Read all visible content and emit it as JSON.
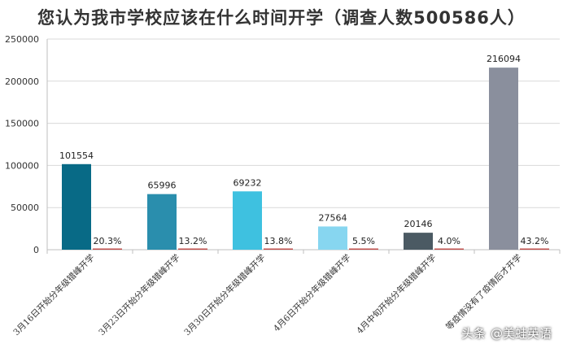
{
  "chart_data": {
    "type": "bar",
    "title": "您认为我市学校应该在什么时间开学（调查人数500586人）",
    "categories": [
      "3月16日开始分年级错峰开学",
      "3月23日开始分年级错峰开学",
      "3月30日开始分年级错峰开学",
      "4月6日开始分年级错峰开学",
      "4月中旬开始分年级错峰开学",
      "等疫情没有了疫情后才开学"
    ],
    "series": [
      {
        "values": [
          101554,
          65996,
          69232,
          27564,
          20146,
          216094
        ],
        "labels": [
          "101554",
          "65996",
          "69232",
          "27564",
          "20146",
          "216094"
        ]
      },
      {
        "values": [
          20.3,
          13.2,
          13.8,
          5.5,
          4.0,
          43.2
        ],
        "labels": [
          "20.3%",
          "13.2%",
          "13.8%",
          "5.5%",
          "4.0%",
          "43.2%"
        ]
      }
    ],
    "bar_colors": [
      "#086a86",
      "#2a8ead",
      "#3ec1e0",
      "#87d6f0",
      "#4b5a63",
      "#8a8f9d"
    ],
    "pct_color": "#c0504d",
    "ylim": [
      0,
      250000
    ],
    "yticks": [
      "0",
      "50000",
      "100000",
      "150000",
      "200000",
      "250000"
    ],
    "ytick_values": [
      0,
      50000,
      100000,
      150000,
      200000,
      250000
    ],
    "grid": true,
    "legend": "none",
    "xlabel": "",
    "ylabel": ""
  },
  "watermark": {
    "text": "头条",
    "handle": "@美蛙英语"
  }
}
